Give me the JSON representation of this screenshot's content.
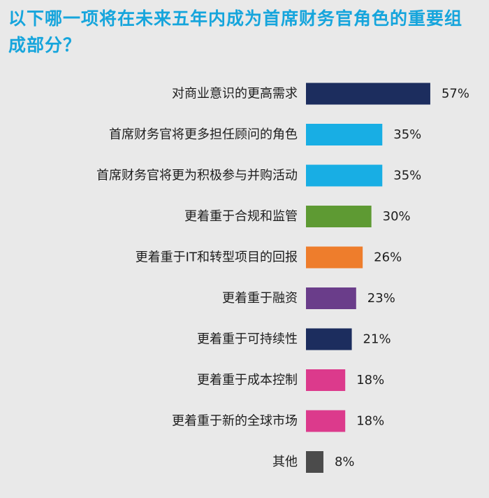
{
  "title": "以下哪一项将在未来五年内成为首席财务官角色的重要组成部分？",
  "chart_data": {
    "type": "bar",
    "orientation": "horizontal",
    "title": "以下哪一项将在未来五年内成为首席财务官角色的重要组成部分？",
    "xlabel": "",
    "ylabel": "",
    "categories": [
      "对商业意识的更高需求",
      "首席财务官将更多担任顾问的角色",
      "首席财务官将更为积极参与并购活动",
      "更着重于合规和监管",
      "更着重于IT和转型项目的回报",
      "更着重于融资",
      "更着重于可持续性",
      "更着重于成本控制",
      "更着重于新的全球市场",
      "其他"
    ],
    "values": [
      57,
      35,
      35,
      30,
      26,
      23,
      21,
      18,
      18,
      8
    ],
    "value_labels": [
      "57%",
      "35%",
      "35%",
      "30%",
      "26%",
      "23%",
      "21%",
      "18%",
      "18%",
      "8%"
    ],
    "unit": "%",
    "colors": [
      "#1c2d5e",
      "#18aee4",
      "#18aee4",
      "#5e9a33",
      "#ee7d2c",
      "#6a3d8a",
      "#1c2d5e",
      "#dc3a8c",
      "#dc3a8c",
      "#4b4b4b"
    ],
    "grid": false,
    "legend": "none"
  }
}
